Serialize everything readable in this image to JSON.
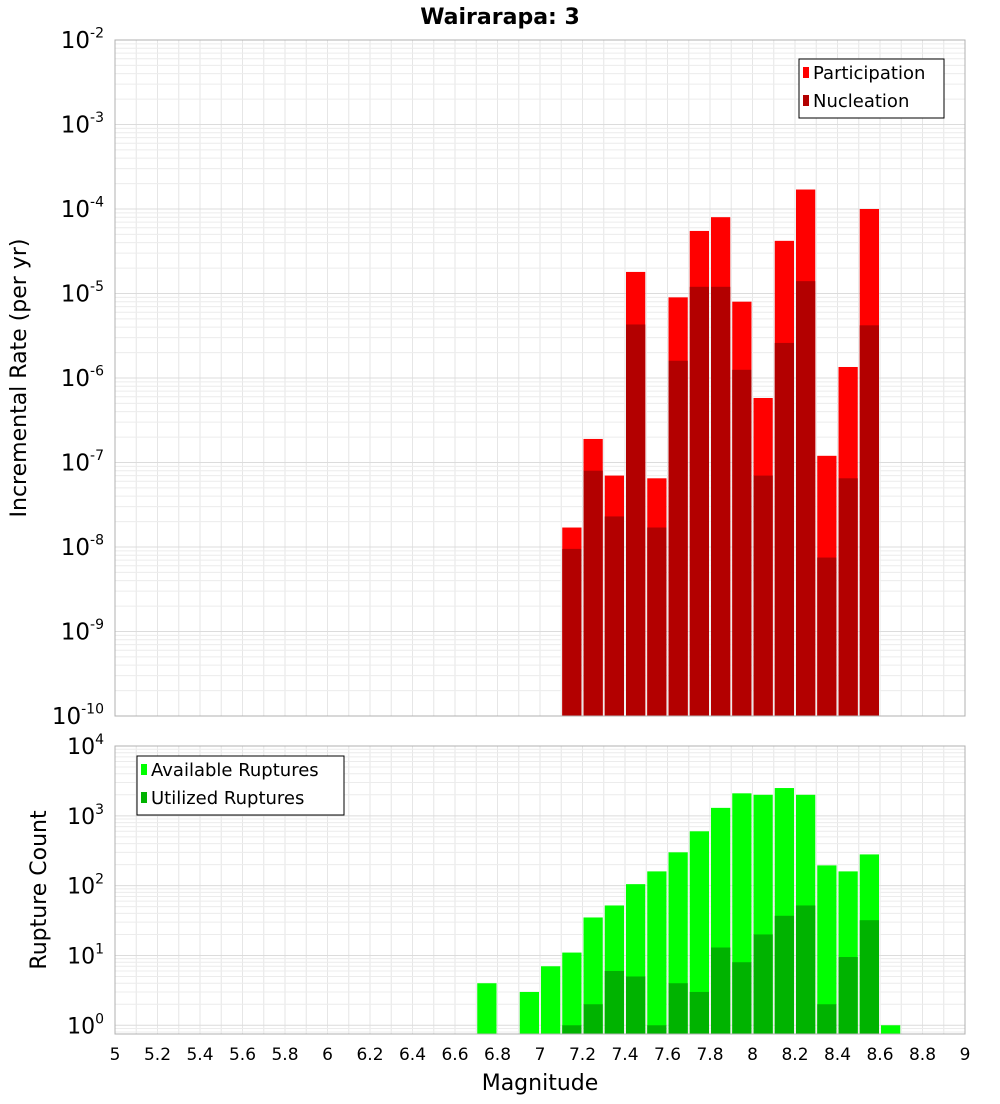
{
  "chart_data": [
    {
      "type": "bar",
      "title": "Wairarapa: 3",
      "xlabel": "",
      "ylabel": "Incremental Rate (per yr)",
      "xlim": [
        5,
        9
      ],
      "ylim": [
        1e-10,
        0.01
      ],
      "y_scale": "log",
      "y_tick_labels": [
        "10^-10",
        "10^-9",
        "10^-8",
        "10^-7",
        "10^-6",
        "10^-5",
        "10^-4",
        "10^-3",
        "10^-2"
      ],
      "grid": true,
      "legend_position": "top-right",
      "overlay": true,
      "bar_width": 0.1,
      "series": [
        {
          "name": "Participation",
          "color": "#ff0000",
          "x": [
            7.15,
            7.25,
            7.35,
            7.45,
            7.55,
            7.65,
            7.75,
            7.85,
            7.95,
            8.05,
            8.15,
            8.25,
            8.35,
            8.45,
            8.55
          ],
          "values": [
            1.7e-08,
            1.9e-07,
            7e-08,
            1.8e-05,
            6.5e-08,
            9e-06,
            5.5e-05,
            8e-05,
            8e-06,
            5.8e-07,
            4.2e-05,
            0.00017,
            1.2e-07,
            1.35e-06,
            0.0001
          ]
        },
        {
          "name": "Nucleation",
          "color": "#b30000",
          "x": [
            7.15,
            7.25,
            7.35,
            7.45,
            7.55,
            7.65,
            7.75,
            7.85,
            7.95,
            8.05,
            8.15,
            8.25,
            8.35,
            8.45,
            8.55
          ],
          "values": [
            9.5e-09,
            8e-08,
            2.3e-08,
            4.3e-06,
            1.7e-08,
            1.6e-06,
            1.2e-05,
            1.2e-05,
            1.25e-06,
            7e-08,
            2.6e-06,
            1.4e-05,
            7.5e-09,
            6.5e-08,
            4.2e-06
          ]
        }
      ]
    },
    {
      "type": "bar",
      "title": "",
      "xlabel": "Magnitude",
      "ylabel": "Rupture Count",
      "xlim": [
        5,
        9
      ],
      "ylim": [
        0.75,
        10000
      ],
      "y_scale": "log",
      "y_tick_labels": [
        "10^0",
        "10^1",
        "10^2",
        "10^3",
        "10^4"
      ],
      "x_ticks": [
        "5",
        "5.2",
        "5.4",
        "5.6",
        "5.8",
        "6",
        "6.2",
        "6.4",
        "6.6",
        "6.8",
        "7",
        "7.2",
        "7.4",
        "7.6",
        "7.8",
        "8",
        "8.2",
        "8.4",
        "8.6",
        "8.8",
        "9"
      ],
      "grid": true,
      "legend_position": "top-left",
      "overlay": true,
      "bar_width": 0.1,
      "series": [
        {
          "name": "Available Ruptures",
          "color": "#00ff00",
          "x": [
            6.75,
            6.95,
            7.05,
            7.15,
            7.25,
            7.35,
            7.45,
            7.55,
            7.65,
            7.75,
            7.85,
            7.95,
            8.05,
            8.15,
            8.25,
            8.35,
            8.45,
            8.55,
            8.65
          ],
          "values": [
            4,
            3,
            7,
            11,
            35,
            52,
            105,
            160,
            300,
            600,
            1300,
            2100,
            2000,
            2500,
            2000,
            195,
            160,
            280,
            1
          ]
        },
        {
          "name": "Utilized Ruptures",
          "color": "#00b300",
          "x": [
            7.15,
            7.25,
            7.35,
            7.45,
            7.55,
            7.65,
            7.75,
            7.85,
            7.95,
            8.05,
            8.15,
            8.25,
            8.35,
            8.45,
            8.55
          ],
          "values": [
            1,
            2,
            6,
            5,
            1,
            4,
            3,
            13,
            8,
            20,
            37,
            52,
            2,
            9.5,
            32
          ]
        }
      ]
    }
  ]
}
